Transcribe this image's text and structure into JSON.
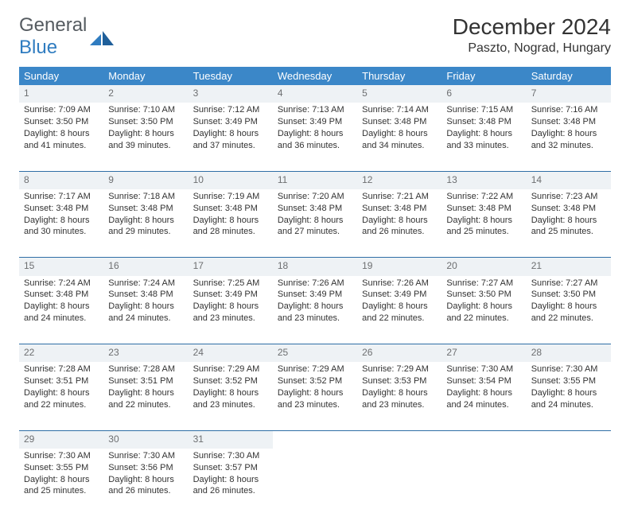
{
  "brand": {
    "line1": "General",
    "line2": "Blue"
  },
  "title": "December 2024",
  "location": "Paszto, Nograd, Hungary",
  "colors": {
    "header_bg": "#3b87c8",
    "header_text": "#ffffff",
    "separator": "#2f6ea6",
    "daynum_bg": "#eef2f5",
    "accent": "#2f7cc0",
    "text": "#333333"
  },
  "weekdays": [
    "Sunday",
    "Monday",
    "Tuesday",
    "Wednesday",
    "Thursday",
    "Friday",
    "Saturday"
  ],
  "weeks": [
    [
      {
        "n": "1",
        "sr": "Sunrise: 7:09 AM",
        "ss": "Sunset: 3:50 PM",
        "d1": "Daylight: 8 hours",
        "d2": "and 41 minutes."
      },
      {
        "n": "2",
        "sr": "Sunrise: 7:10 AM",
        "ss": "Sunset: 3:50 PM",
        "d1": "Daylight: 8 hours",
        "d2": "and 39 minutes."
      },
      {
        "n": "3",
        "sr": "Sunrise: 7:12 AM",
        "ss": "Sunset: 3:49 PM",
        "d1": "Daylight: 8 hours",
        "d2": "and 37 minutes."
      },
      {
        "n": "4",
        "sr": "Sunrise: 7:13 AM",
        "ss": "Sunset: 3:49 PM",
        "d1": "Daylight: 8 hours",
        "d2": "and 36 minutes."
      },
      {
        "n": "5",
        "sr": "Sunrise: 7:14 AM",
        "ss": "Sunset: 3:48 PM",
        "d1": "Daylight: 8 hours",
        "d2": "and 34 minutes."
      },
      {
        "n": "6",
        "sr": "Sunrise: 7:15 AM",
        "ss": "Sunset: 3:48 PM",
        "d1": "Daylight: 8 hours",
        "d2": "and 33 minutes."
      },
      {
        "n": "7",
        "sr": "Sunrise: 7:16 AM",
        "ss": "Sunset: 3:48 PM",
        "d1": "Daylight: 8 hours",
        "d2": "and 32 minutes."
      }
    ],
    [
      {
        "n": "8",
        "sr": "Sunrise: 7:17 AM",
        "ss": "Sunset: 3:48 PM",
        "d1": "Daylight: 8 hours",
        "d2": "and 30 minutes."
      },
      {
        "n": "9",
        "sr": "Sunrise: 7:18 AM",
        "ss": "Sunset: 3:48 PM",
        "d1": "Daylight: 8 hours",
        "d2": "and 29 minutes."
      },
      {
        "n": "10",
        "sr": "Sunrise: 7:19 AM",
        "ss": "Sunset: 3:48 PM",
        "d1": "Daylight: 8 hours",
        "d2": "and 28 minutes."
      },
      {
        "n": "11",
        "sr": "Sunrise: 7:20 AM",
        "ss": "Sunset: 3:48 PM",
        "d1": "Daylight: 8 hours",
        "d2": "and 27 minutes."
      },
      {
        "n": "12",
        "sr": "Sunrise: 7:21 AM",
        "ss": "Sunset: 3:48 PM",
        "d1": "Daylight: 8 hours",
        "d2": "and 26 minutes."
      },
      {
        "n": "13",
        "sr": "Sunrise: 7:22 AM",
        "ss": "Sunset: 3:48 PM",
        "d1": "Daylight: 8 hours",
        "d2": "and 25 minutes."
      },
      {
        "n": "14",
        "sr": "Sunrise: 7:23 AM",
        "ss": "Sunset: 3:48 PM",
        "d1": "Daylight: 8 hours",
        "d2": "and 25 minutes."
      }
    ],
    [
      {
        "n": "15",
        "sr": "Sunrise: 7:24 AM",
        "ss": "Sunset: 3:48 PM",
        "d1": "Daylight: 8 hours",
        "d2": "and 24 minutes."
      },
      {
        "n": "16",
        "sr": "Sunrise: 7:24 AM",
        "ss": "Sunset: 3:48 PM",
        "d1": "Daylight: 8 hours",
        "d2": "and 24 minutes."
      },
      {
        "n": "17",
        "sr": "Sunrise: 7:25 AM",
        "ss": "Sunset: 3:49 PM",
        "d1": "Daylight: 8 hours",
        "d2": "and 23 minutes."
      },
      {
        "n": "18",
        "sr": "Sunrise: 7:26 AM",
        "ss": "Sunset: 3:49 PM",
        "d1": "Daylight: 8 hours",
        "d2": "and 23 minutes."
      },
      {
        "n": "19",
        "sr": "Sunrise: 7:26 AM",
        "ss": "Sunset: 3:49 PM",
        "d1": "Daylight: 8 hours",
        "d2": "and 22 minutes."
      },
      {
        "n": "20",
        "sr": "Sunrise: 7:27 AM",
        "ss": "Sunset: 3:50 PM",
        "d1": "Daylight: 8 hours",
        "d2": "and 22 minutes."
      },
      {
        "n": "21",
        "sr": "Sunrise: 7:27 AM",
        "ss": "Sunset: 3:50 PM",
        "d1": "Daylight: 8 hours",
        "d2": "and 22 minutes."
      }
    ],
    [
      {
        "n": "22",
        "sr": "Sunrise: 7:28 AM",
        "ss": "Sunset: 3:51 PM",
        "d1": "Daylight: 8 hours",
        "d2": "and 22 minutes."
      },
      {
        "n": "23",
        "sr": "Sunrise: 7:28 AM",
        "ss": "Sunset: 3:51 PM",
        "d1": "Daylight: 8 hours",
        "d2": "and 22 minutes."
      },
      {
        "n": "24",
        "sr": "Sunrise: 7:29 AM",
        "ss": "Sunset: 3:52 PM",
        "d1": "Daylight: 8 hours",
        "d2": "and 23 minutes."
      },
      {
        "n": "25",
        "sr": "Sunrise: 7:29 AM",
        "ss": "Sunset: 3:52 PM",
        "d1": "Daylight: 8 hours",
        "d2": "and 23 minutes."
      },
      {
        "n": "26",
        "sr": "Sunrise: 7:29 AM",
        "ss": "Sunset: 3:53 PM",
        "d1": "Daylight: 8 hours",
        "d2": "and 23 minutes."
      },
      {
        "n": "27",
        "sr": "Sunrise: 7:30 AM",
        "ss": "Sunset: 3:54 PM",
        "d1": "Daylight: 8 hours",
        "d2": "and 24 minutes."
      },
      {
        "n": "28",
        "sr": "Sunrise: 7:30 AM",
        "ss": "Sunset: 3:55 PM",
        "d1": "Daylight: 8 hours",
        "d2": "and 24 minutes."
      }
    ],
    [
      {
        "n": "29",
        "sr": "Sunrise: 7:30 AM",
        "ss": "Sunset: 3:55 PM",
        "d1": "Daylight: 8 hours",
        "d2": "and 25 minutes."
      },
      {
        "n": "30",
        "sr": "Sunrise: 7:30 AM",
        "ss": "Sunset: 3:56 PM",
        "d1": "Daylight: 8 hours",
        "d2": "and 26 minutes."
      },
      {
        "n": "31",
        "sr": "Sunrise: 7:30 AM",
        "ss": "Sunset: 3:57 PM",
        "d1": "Daylight: 8 hours",
        "d2": "and 26 minutes."
      },
      null,
      null,
      null,
      null
    ]
  ]
}
